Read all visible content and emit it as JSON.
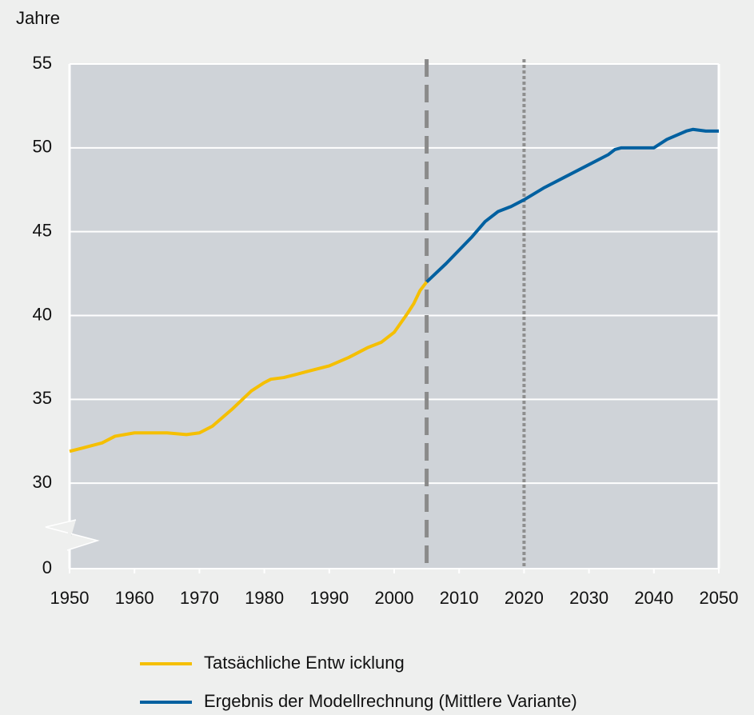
{
  "chart_data": {
    "type": "line",
    "ylabel": "Jahre",
    "x": [
      1950,
      1952,
      1955,
      1957,
      1960,
      1965,
      1968,
      1970,
      1972,
      1975,
      1978,
      1980,
      1981,
      1983,
      1985,
      1988,
      1990,
      1993,
      1996,
      1998,
      2000,
      2002,
      2003,
      2004,
      2005,
      2008,
      2010,
      2012,
      2014,
      2016,
      2018,
      2020,
      2023,
      2026,
      2030,
      2033,
      2034,
      2035,
      2040,
      2042,
      2045,
      2046,
      2048,
      2050
    ],
    "series": [
      {
        "name": "Tatsächliche Entw icklung",
        "color": "#f5bf00",
        "values": [
          31.9,
          32.1,
          32.4,
          32.8,
          33.0,
          33.0,
          32.9,
          33.0,
          33.4,
          34.4,
          35.5,
          36.0,
          36.2,
          36.3,
          36.5,
          36.8,
          37.0,
          37.5,
          38.1,
          38.4,
          39.0,
          40.1,
          40.7,
          41.5,
          42.0,
          null,
          null,
          null,
          null,
          null,
          null,
          null,
          null,
          null,
          null,
          null,
          null,
          null,
          null,
          null,
          null,
          null,
          null,
          null
        ]
      },
      {
        "name": "Ergebnis der Modellrechnung (Mittlere Variante)",
        "color": "#0060a0",
        "values": [
          null,
          null,
          null,
          null,
          null,
          null,
          null,
          null,
          null,
          null,
          null,
          null,
          null,
          null,
          null,
          null,
          null,
          null,
          null,
          null,
          null,
          null,
          null,
          null,
          42.0,
          43.1,
          43.9,
          44.7,
          45.6,
          46.2,
          46.5,
          46.9,
          47.6,
          48.2,
          49.0,
          49.6,
          49.9,
          50.0,
          50.0,
          50.5,
          51.0,
          51.1,
          51.0,
          51.0
        ]
      }
    ],
    "xlim": [
      1950,
      2050
    ],
    "xticks": [
      1950,
      1960,
      1970,
      1980,
      1990,
      2000,
      2010,
      2020,
      2030,
      2040,
      2050
    ],
    "ylim": [
      0,
      55
    ],
    "yticks": [
      0,
      30,
      35,
      40,
      45,
      50,
      55
    ],
    "y_break": [
      0,
      25
    ],
    "grid": true,
    "vlines": [
      {
        "x": 2005,
        "style": "dashed"
      },
      {
        "x": 2020,
        "style": "dotted"
      }
    ]
  }
}
